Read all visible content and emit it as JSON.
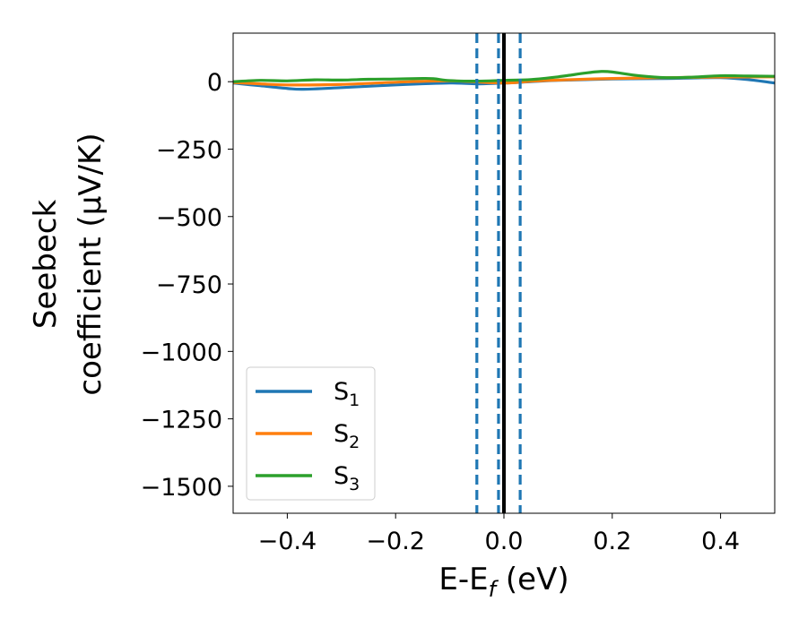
{
  "chart_data": {
    "type": "line",
    "xlabel": "E-E_f (eV)",
    "xlabel_parts": {
      "main": "E-E",
      "sub": "f",
      "tail": " (eV)"
    },
    "ylabel_line1": "Seebeck",
    "ylabel_line2": "coefficient  (μV/K)",
    "xlim": [
      -0.5,
      0.5
    ],
    "ylim": [
      -1600,
      180
    ],
    "xticks": [
      -0.4,
      -0.2,
      0.0,
      0.2,
      0.4
    ],
    "xtick_labels": [
      "−0.4",
      "−0.2",
      "0.0",
      "0.2",
      "0.4"
    ],
    "yticks": [
      0,
      -250,
      -500,
      -750,
      -1000,
      -1250,
      -1500
    ],
    "ytick_labels": [
      "0",
      "−250",
      "−500",
      "−750",
      "−1000",
      "−1250",
      "−1500"
    ],
    "grid": false,
    "legend_position": "lower-left",
    "series": [
      {
        "name": "S_1",
        "label_main": "S",
        "label_sub": "1",
        "color": "#1f77b4",
        "x": [
          -0.5,
          -0.45,
          -0.4,
          -0.37,
          -0.3,
          -0.2,
          -0.1,
          -0.05,
          0.0,
          0.05,
          0.1,
          0.2,
          0.3,
          0.35,
          0.4,
          0.45,
          0.5
        ],
        "y": [
          -5,
          -15,
          -25,
          -28,
          -22,
          -12,
          -5,
          -8,
          -5,
          0,
          5,
          10,
          12,
          14,
          15,
          8,
          -5
        ]
      },
      {
        "name": "S_2",
        "label_main": "S",
        "label_sub": "2",
        "color": "#ff7f0e",
        "x": [
          -0.5,
          -0.45,
          -0.4,
          -0.3,
          -0.2,
          -0.1,
          0.0,
          0.05,
          0.1,
          0.2,
          0.3,
          0.4,
          0.5
        ],
        "y": [
          -3,
          -8,
          -12,
          -10,
          -2,
          3,
          -5,
          2,
          6,
          12,
          15,
          17,
          18
        ]
      },
      {
        "name": "S_3",
        "label_main": "S",
        "label_sub": "3",
        "color": "#2ca02c",
        "x": [
          -0.5,
          -0.45,
          -0.4,
          -0.35,
          -0.3,
          -0.25,
          -0.2,
          -0.15,
          -0.13,
          -0.1,
          -0.05,
          0.0,
          0.05,
          0.1,
          0.15,
          0.18,
          0.2,
          0.25,
          0.3,
          0.35,
          0.4,
          0.45,
          0.5
        ],
        "y": [
          0,
          5,
          3,
          7,
          6,
          9,
          10,
          12,
          11,
          4,
          2,
          5,
          8,
          18,
          32,
          38,
          36,
          22,
          15,
          17,
          22,
          21,
          20
        ]
      }
    ],
    "vlines": [
      {
        "x": 0.0,
        "style": "solid",
        "color": "#000000"
      },
      {
        "x": -0.05,
        "style": "dashed",
        "color": "#1f77b4"
      },
      {
        "x": -0.01,
        "style": "dashed",
        "color": "#1f77b4"
      },
      {
        "x": 0.03,
        "style": "dashed",
        "color": "#1f77b4"
      }
    ]
  }
}
